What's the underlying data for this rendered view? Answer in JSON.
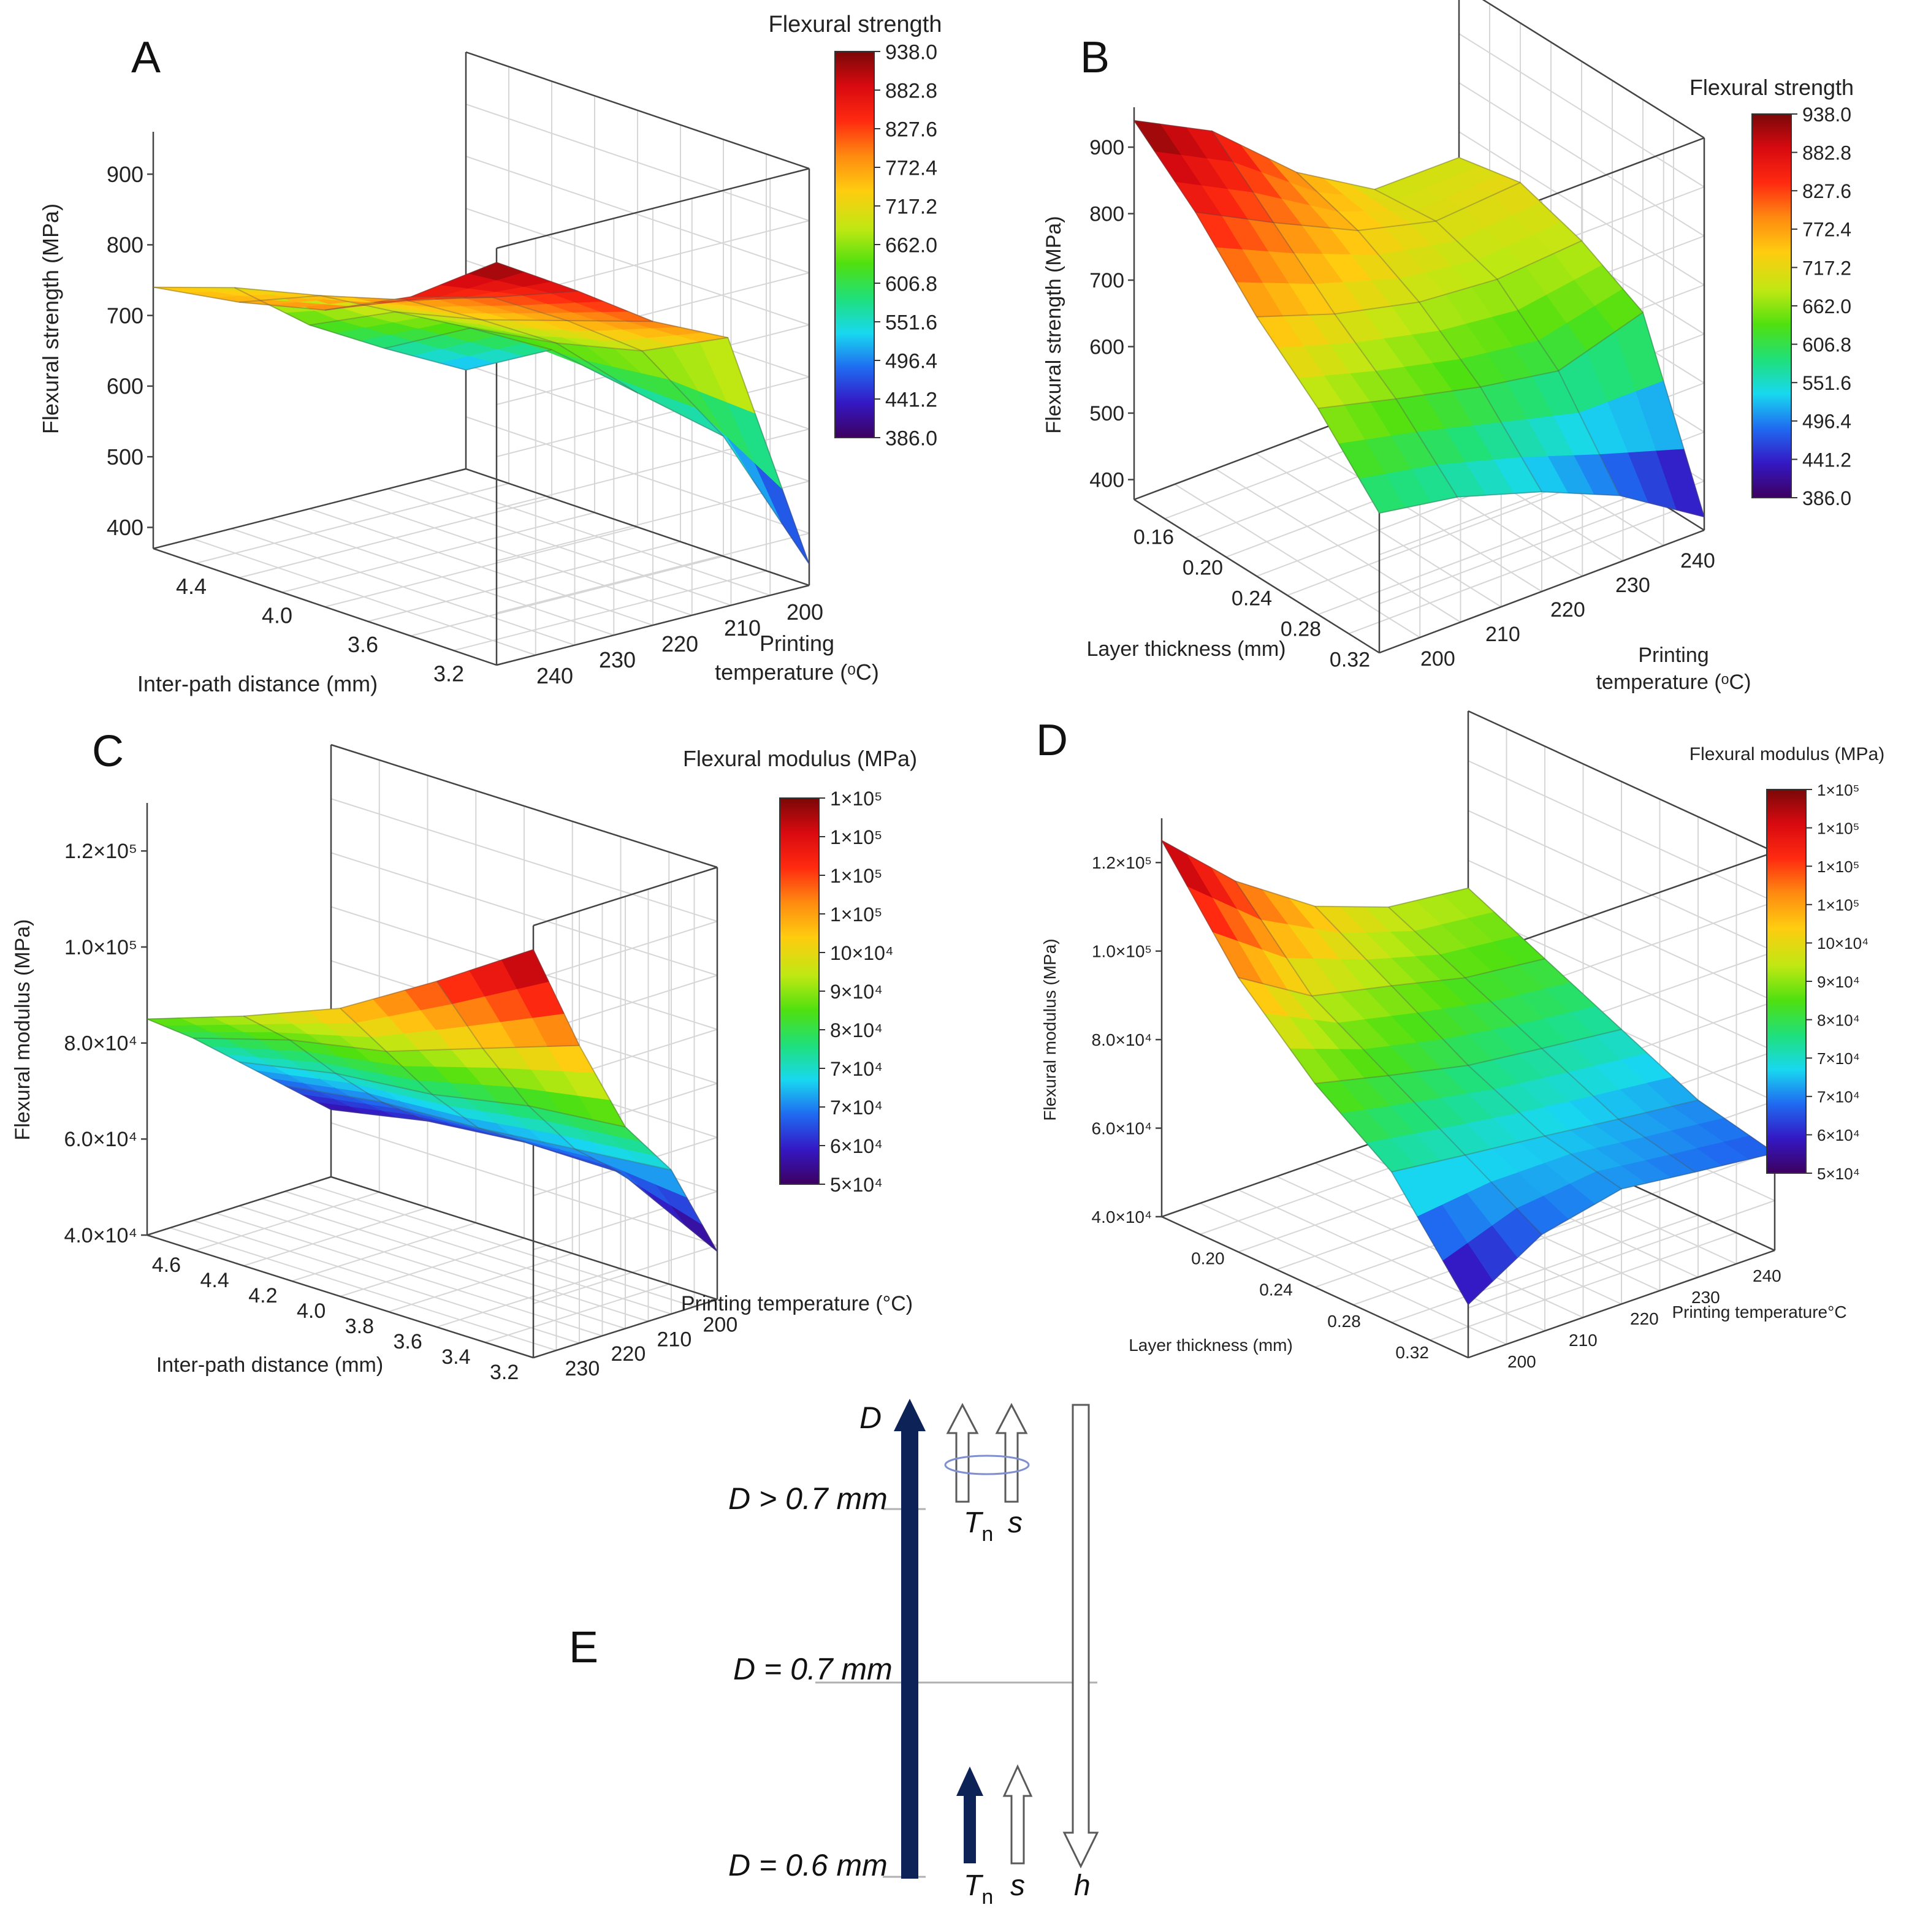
{
  "colors": {
    "axis": "#444444",
    "grid": "#d6d6d6",
    "text": "#222222",
    "arrow_fill": "#0d2257",
    "arrow_outline": "#5a5a5a",
    "ellipse": "#7f8fcf"
  },
  "colormap": [
    "#3d0060",
    "#3418c4",
    "#1f6af0",
    "#18d8f0",
    "#1fe07a",
    "#4fe010",
    "#bfe812",
    "#ffcc10",
    "#ff8a10",
    "#ff2a10",
    "#d90a10",
    "#7a0808"
  ],
  "chart_data": [
    {
      "panel": "A",
      "type": "surface3d",
      "colorbar": {
        "title": "Flexural strength",
        "ticks": [
          "938.0",
          "882.8",
          "827.6",
          "772.4",
          "717.2",
          "662.0",
          "606.8",
          "551.6",
          "496.4",
          "441.2",
          "386.0"
        ],
        "range": [
          386.0,
          938.0
        ]
      },
      "ylabel": "Flexural strength (MPa)",
      "xlabel": "Inter-path distance (mm)",
      "zlabel_lines": [
        "Printing",
        "temperature (ᵒC)"
      ],
      "yticks": [
        "400",
        "500",
        "600",
        "700",
        "800",
        "900"
      ],
      "ylim": [
        370,
        960
      ],
      "xticks": [
        "4.4",
        "4.0",
        "3.6",
        "3.2"
      ],
      "xlim": [
        4.6,
        3.0
      ],
      "zticks": [
        "240",
        "230",
        "220",
        "210",
        "200"
      ],
      "zlim": [
        245,
        195
      ],
      "x": [
        4.6,
        4.2,
        3.8,
        3.4,
        3.0
      ],
      "z": [
        245,
        232,
        220,
        208,
        195
      ],
      "values": [
        [
          740,
          760,
          790,
          850,
          940
        ],
        [
          710,
          740,
          775,
          820,
          870
        ],
        [
          630,
          690,
          720,
          760,
          800
        ],
        [
          570,
          640,
          660,
          690,
          750
        ],
        [
          510,
          580,
          560,
          540,
          400
        ]
      ]
    },
    {
      "panel": "B",
      "type": "surface3d",
      "colorbar": {
        "title": "Flexural strength",
        "ticks": [
          "938.0",
          "882.8",
          "827.6",
          "772.4",
          "717.2",
          "662.0",
          "606.8",
          "551.6",
          "496.4",
          "441.2",
          "386.0"
        ],
        "range": [
          386.0,
          938.0
        ]
      },
      "ylabel": "Flexural strength (MPa)",
      "xlabel": "Layer thickness (mm)",
      "zlabel_lines": [
        "Printing",
        "temperature (ᵒC)"
      ],
      "yticks": [
        "400",
        "500",
        "600",
        "700",
        "800",
        "900"
      ],
      "ylim": [
        370,
        960
      ],
      "xticks": [
        "0.16",
        "0.20",
        "0.24",
        "0.28",
        "0.32"
      ],
      "xlim": [
        0.14,
        0.34
      ],
      "zticks": [
        "200",
        "210",
        "220",
        "230",
        "240"
      ],
      "zlim": [
        195,
        245
      ],
      "x": [
        0.14,
        0.19,
        0.24,
        0.29,
        0.34
      ],
      "z": [
        195,
        207,
        220,
        232,
        245
      ],
      "values": [
        [
          940,
          860,
          760,
          680,
          580
        ],
        [
          880,
          800,
          720,
          650,
          560
        ],
        [
          770,
          740,
          690,
          620,
          520
        ],
        [
          700,
          710,
          680,
          600,
          470
        ],
        [
          700,
          720,
          690,
          640,
          390
        ]
      ]
    },
    {
      "panel": "C",
      "type": "surface3d",
      "colorbar": {
        "title": "Flexural modulus (MPa)",
        "ticks": [
          "1×10⁵",
          "1×10⁵",
          "1×10⁵",
          "1×10⁵",
          "10×10⁴",
          "9×10⁴",
          "8×10⁴",
          "7×10⁴",
          "7×10⁴",
          "6×10⁴",
          "5×10⁴"
        ],
        "range": [
          50000,
          125000
        ]
      },
      "ylabel": "Flexural modulus (MPa)",
      "xlabel": "Inter-path distance (mm)",
      "zlabel_lines": [
        "Printing temperature (°C)"
      ],
      "yticks": [
        "4.0×10⁴",
        "6.0×10⁴",
        "8.0×10⁴",
        "1.0×10⁵",
        "1.2×10⁵"
      ],
      "ylim": [
        40000,
        130000
      ],
      "xticks": [
        "4.6",
        "4.4",
        "4.2",
        "4.0",
        "3.8",
        "3.6",
        "3.4",
        "3.2"
      ],
      "xlim": [
        4.7,
        3.1
      ],
      "zticks": [
        "230",
        "220",
        "210",
        "200"
      ],
      "zlim": [
        235,
        195
      ],
      "x": [
        4.7,
        4.3,
        3.9,
        3.5,
        3.1
      ],
      "z": [
        235,
        225,
        215,
        205,
        195
      ],
      "values": [
        [
          85000,
          92000,
          100000,
          112000,
          125000
        ],
        [
          78000,
          84000,
          88000,
          95000,
          102000
        ],
        [
          70000,
          74000,
          76000,
          80000,
          82000
        ],
        [
          62000,
          65000,
          66000,
          68000,
          70000
        ],
        [
          54000,
          58000,
          60000,
          60000,
          50000
        ]
      ]
    },
    {
      "panel": "D",
      "type": "surface3d",
      "colorbar": {
        "title": "Flexural modulus (MPa)",
        "ticks": [
          "1×10⁵",
          "1×10⁵",
          "1×10⁵",
          "1×10⁵",
          "10×10⁴",
          "9×10⁴",
          "8×10⁴",
          "7×10⁴",
          "7×10⁴",
          "6×10⁴",
          "5×10⁴"
        ],
        "range": [
          50000,
          125000
        ]
      },
      "ylabel": "Flexural modulus (MPa)",
      "xlabel": "Layer thickness (mm)",
      "zlabel_lines": [
        "Printing temperature°C"
      ],
      "yticks": [
        "4.0×10⁴",
        "6.0×10⁴",
        "8.0×10⁴",
        "1.0×10⁵",
        "1.2×10⁵"
      ],
      "ylim": [
        40000,
        130000
      ],
      "xticks": [
        "0.20",
        "0.24",
        "0.28",
        "0.32"
      ],
      "xlim": [
        0.17,
        0.35
      ],
      "zticks": [
        "200",
        "210",
        "220",
        "230",
        "240"
      ],
      "zlim": [
        195,
        245
      ],
      "x": [
        0.17,
        0.215,
        0.26,
        0.305,
        0.35
      ],
      "z": [
        195,
        207,
        220,
        232,
        245
      ],
      "values": [
        [
          125000,
          102000,
          86000,
          74000,
          52000
        ],
        [
          110000,
          92000,
          82000,
          72000,
          62000
        ],
        [
          98000,
          88000,
          78000,
          70000,
          66000
        ],
        [
          92000,
          84000,
          76000,
          68000,
          64000
        ],
        [
          90000,
          82000,
          74000,
          66000,
          62000
        ]
      ]
    }
  ],
  "panels": {
    "a": "A",
    "b": "B",
    "c": "C",
    "d": "D",
    "e": "E"
  },
  "diagram_e": {
    "d_label": "D",
    "levels": [
      "D > 0.7 mm",
      "D = 0.7 mm",
      "D = 0.6 mm"
    ],
    "tn_main": "T",
    "tn_sub": "n",
    "s": "s",
    "h": "h"
  }
}
